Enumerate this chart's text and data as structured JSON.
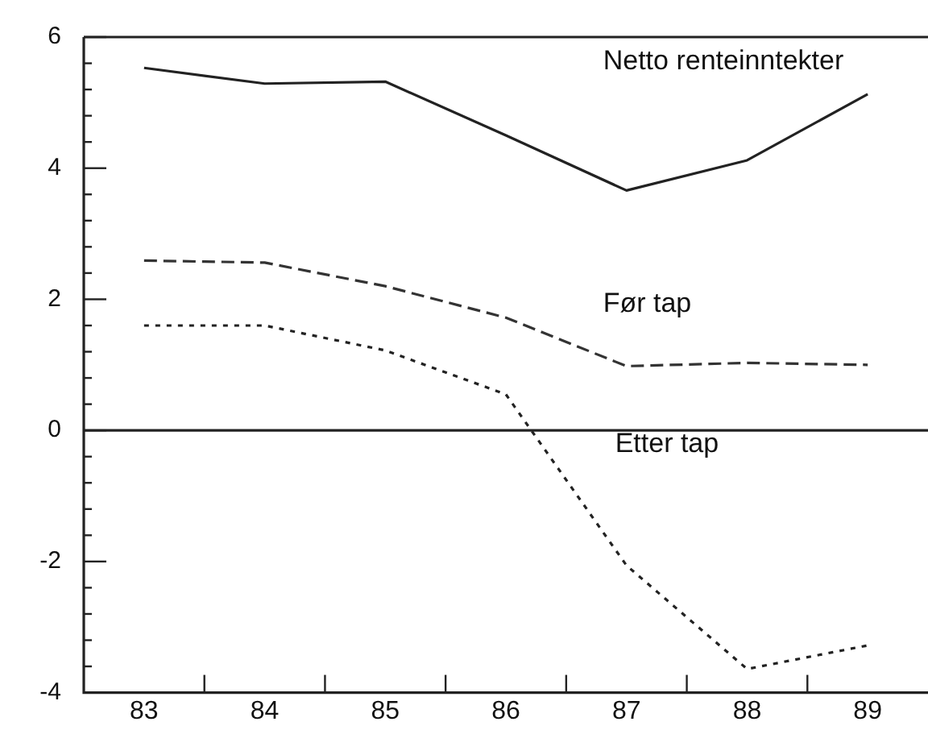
{
  "chart_data": {
    "type": "line",
    "categories": [
      "83",
      "84",
      "85",
      "86",
      "87",
      "88",
      "89"
    ],
    "series": [
      {
        "name": "Netto renteinntekter",
        "color": "#222222",
        "line_style": "solid",
        "values": [
          5.53,
          5.29,
          5.32,
          4.5,
          3.66,
          4.12,
          5.13
        ]
      },
      {
        "name": "Før tap",
        "color": "#333333",
        "line_style": "dashed",
        "values": [
          2.59,
          2.56,
          2.2,
          1.72,
          0.98,
          1.03,
          1.0
        ]
      },
      {
        "name": "Etter tap",
        "color": "#222222",
        "line_style": "dotted",
        "values": [
          1.6,
          1.6,
          1.22,
          0.55,
          -2.06,
          -3.64,
          -3.28
        ]
      }
    ],
    "ylim": [
      -4,
      6
    ],
    "yticks": [
      -4,
      {
        "value": -3.6,
        "label": null
      },
      {
        "value": -3.2,
        "label": null
      },
      {
        "value": -2.8,
        "label": null
      },
      {
        "value": -2.4,
        "label": null
      },
      -2,
      {
        "value": -1.6,
        "label": null
      },
      {
        "value": -1.2,
        "label": null
      },
      {
        "value": -0.8,
        "label": null
      },
      {
        "value": -0.4,
        "label": null
      },
      0,
      {
        "value": 0.4,
        "label": null
      },
      {
        "value": 0.8,
        "label": null
      },
      {
        "value": 1.2,
        "label": null
      },
      {
        "value": 1.6,
        "label": null
      },
      2,
      {
        "value": 2.4,
        "label": null
      },
      {
        "value": 2.8,
        "label": null
      },
      {
        "value": 3.2,
        "label": null
      },
      {
        "value": 3.6,
        "label": null
      },
      4,
      {
        "value": 4.4,
        "label": null
      },
      {
        "value": 4.8,
        "label": null
      },
      {
        "value": 5.2,
        "label": null
      },
      {
        "value": 5.6,
        "label": null
      },
      6
    ],
    "ref_lines": [
      {
        "axis": "y",
        "value": 0,
        "color": "#222222",
        "line_style": "solid"
      }
    ],
    "grid": false,
    "legend": false,
    "marker": "none"
  }
}
